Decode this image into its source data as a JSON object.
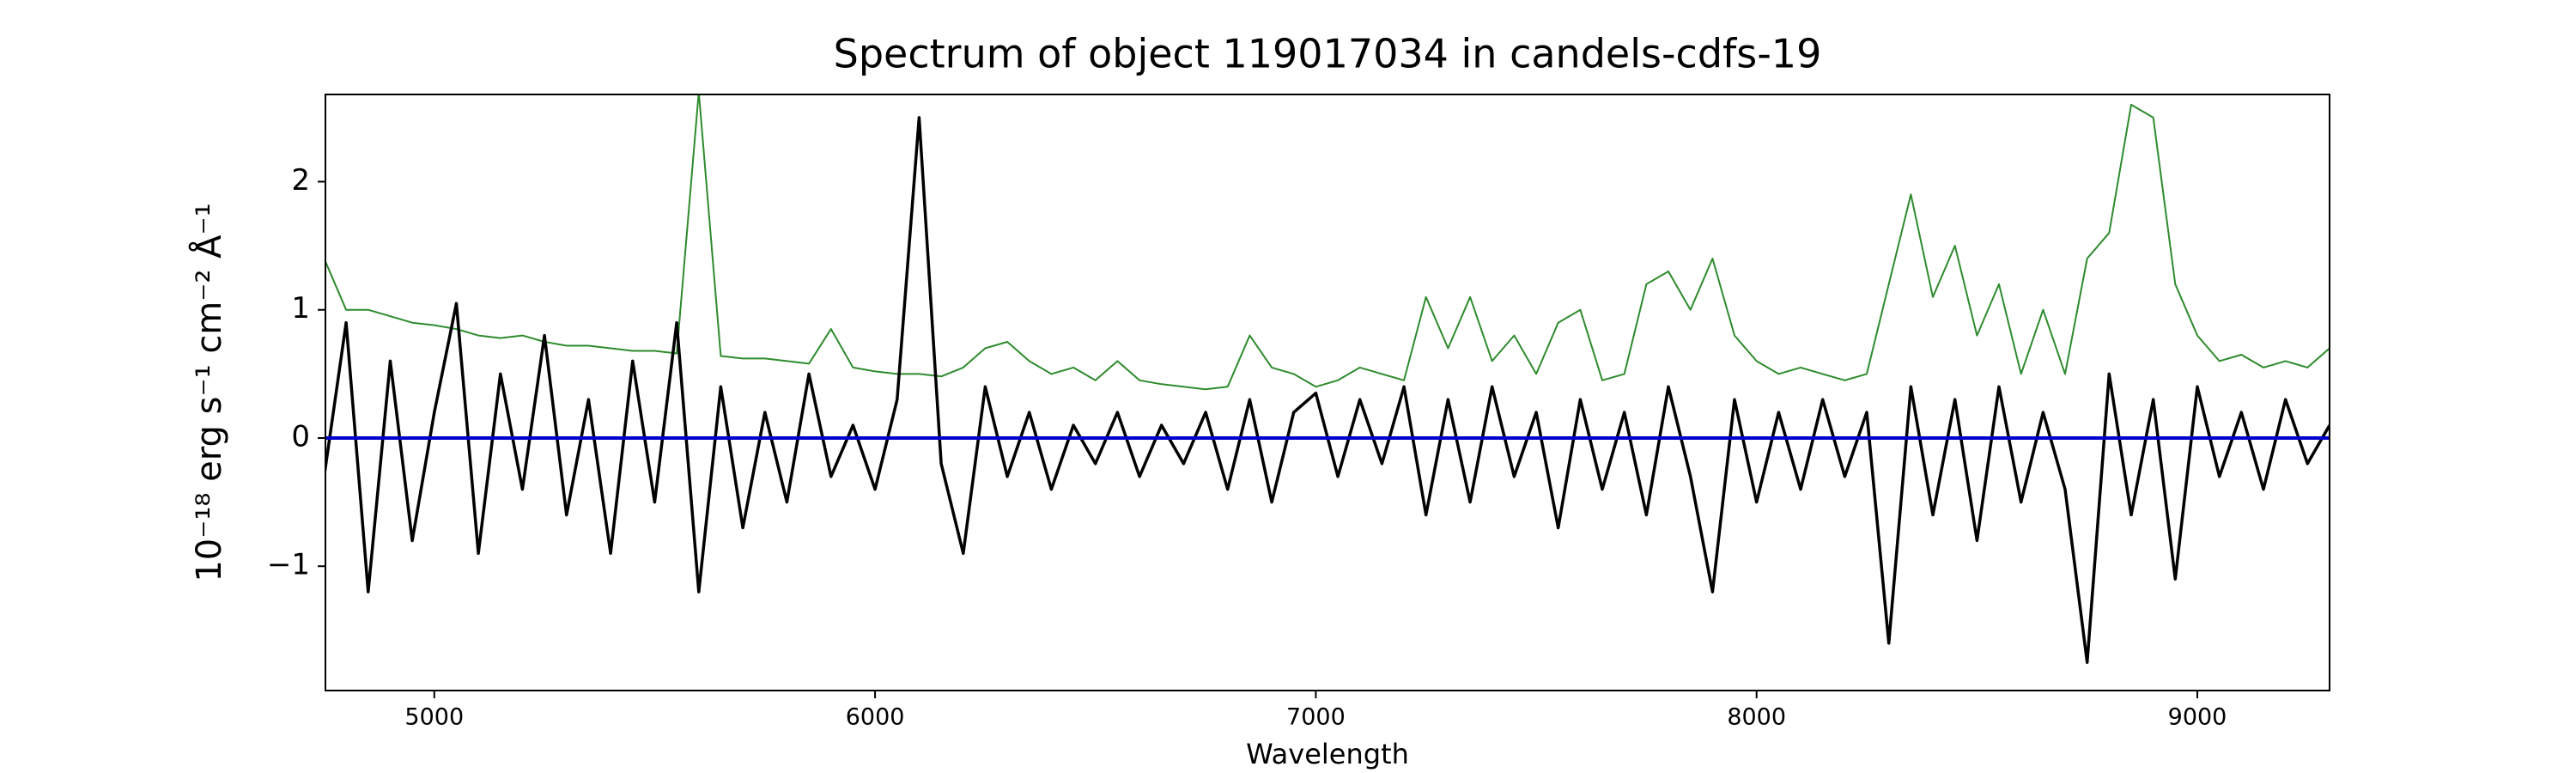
{
  "chart_data": {
    "type": "line",
    "title": "Spectrum of object 119017034 in candels-cdfs-19",
    "xlabel": "Wavelength",
    "ylabel": "10⁻¹⁸ erg s⁻¹ cm⁻² Å⁻¹",
    "x": [
      4750,
      4800,
      4850,
      4900,
      4950,
      5000,
      5050,
      5100,
      5150,
      5200,
      5250,
      5300,
      5350,
      5400,
      5450,
      5500,
      5550,
      5600,
      5650,
      5700,
      5750,
      5800,
      5850,
      5900,
      5950,
      6000,
      6050,
      6100,
      6150,
      6200,
      6250,
      6300,
      6350,
      6400,
      6450,
      6500,
      6550,
      6600,
      6650,
      6700,
      6750,
      6800,
      6850,
      6900,
      6950,
      7000,
      7050,
      7100,
      7150,
      7200,
      7250,
      7300,
      7350,
      7400,
      7450,
      7500,
      7550,
      7600,
      7650,
      7700,
      7750,
      7800,
      7850,
      7900,
      7950,
      8000,
      8050,
      8100,
      8150,
      8200,
      8250,
      8300,
      8350,
      8400,
      8450,
      8500,
      8550,
      8600,
      8650,
      8700,
      8750,
      8800,
      8850,
      8900,
      8950,
      9000,
      9050,
      9100,
      9150,
      9200,
      9250,
      9300
    ],
    "series": [
      {
        "color": "#2e8b2e",
        "width": 2,
        "values": [
          1.4,
          1.0,
          1.0,
          0.95,
          0.9,
          0.88,
          0.85,
          0.8,
          0.78,
          0.8,
          0.75,
          0.72,
          0.72,
          0.7,
          0.68,
          0.68,
          0.66,
          2.7,
          0.64,
          0.62,
          0.62,
          0.6,
          0.58,
          0.85,
          0.55,
          0.52,
          0.5,
          0.5,
          0.48,
          0.55,
          0.7,
          0.75,
          0.6,
          0.5,
          0.55,
          0.45,
          0.6,
          0.45,
          0.42,
          0.4,
          0.38,
          0.4,
          0.8,
          0.55,
          0.5,
          0.4,
          0.45,
          0.55,
          0.5,
          0.45,
          1.1,
          0.7,
          1.1,
          0.6,
          0.8,
          0.5,
          0.9,
          1.0,
          0.45,
          0.5,
          1.2,
          1.3,
          1.0,
          1.4,
          0.8,
          0.6,
          0.5,
          0.55,
          0.5,
          0.45,
          0.5,
          1.2,
          1.9,
          1.1,
          1.5,
          0.8,
          1.2,
          0.5,
          1.0,
          0.5,
          1.4,
          1.6,
          2.6,
          2.5,
          1.2,
          0.8,
          0.6,
          0.65,
          0.55,
          0.6,
          0.55,
          0.7
        ]
      },
      {
        "color": "#000000",
        "width": 3.5,
        "values": [
          -0.3,
          0.9,
          -1.2,
          0.6,
          -0.8,
          0.2,
          1.05,
          -0.9,
          0.5,
          -0.4,
          0.8,
          -0.6,
          0.3,
          -0.9,
          0.6,
          -0.5,
          0.9,
          -1.2,
          0.4,
          -0.7,
          0.2,
          -0.5,
          0.5,
          -0.3,
          0.1,
          -0.4,
          0.3,
          2.5,
          -0.2,
          -0.9,
          0.4,
          -0.3,
          0.2,
          -0.4,
          0.1,
          -0.2,
          0.2,
          -0.3,
          0.1,
          -0.2,
          0.2,
          -0.4,
          0.3,
          -0.5,
          0.2,
          0.35,
          -0.3,
          0.3,
          -0.2,
          0.4,
          -0.6,
          0.3,
          -0.5,
          0.4,
          -0.3,
          0.2,
          -0.7,
          0.3,
          -0.4,
          0.2,
          -0.6,
          0.4,
          -0.3,
          -1.2,
          0.3,
          -0.5,
          0.2,
          -0.4,
          0.3,
          -0.3,
          0.2,
          -1.6,
          0.4,
          -0.6,
          0.3,
          -0.8,
          0.4,
          -0.5,
          0.2,
          -0.4,
          -1.75,
          0.5,
          -0.6,
          0.3,
          -1.1,
          0.4,
          -0.3,
          0.2,
          -0.4,
          0.3,
          -0.2,
          0.1
        ]
      },
      {
        "color": "#0000cc",
        "width": 4,
        "x": [
          4750,
          9300
        ],
        "values": [
          0,
          0
        ]
      }
    ],
    "xlim": [
      4753,
      9300
    ],
    "ylim": [
      -1.97,
      2.68
    ],
    "xticks": [
      5000,
      6000,
      7000,
      8000,
      9000
    ],
    "yticks": [
      {
        "value": -1,
        "label": "−1"
      },
      0,
      1,
      2
    ],
    "grid": false
  }
}
